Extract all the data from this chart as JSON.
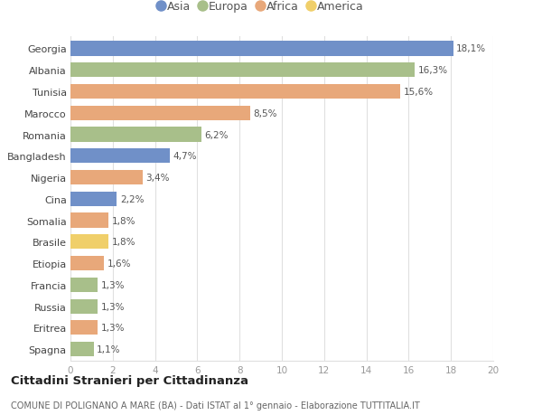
{
  "categories": [
    "Georgia",
    "Albania",
    "Tunisia",
    "Marocco",
    "Romania",
    "Bangladesh",
    "Nigeria",
    "Cina",
    "Somalia",
    "Brasile",
    "Etiopia",
    "Francia",
    "Russia",
    "Eritrea",
    "Spagna"
  ],
  "values": [
    18.1,
    16.3,
    15.6,
    8.5,
    6.2,
    4.7,
    3.4,
    2.2,
    1.8,
    1.8,
    1.6,
    1.3,
    1.3,
    1.3,
    1.1
  ],
  "labels": [
    "18,1%",
    "16,3%",
    "15,6%",
    "8,5%",
    "6,2%",
    "4,7%",
    "3,4%",
    "2,2%",
    "1,8%",
    "1,8%",
    "1,6%",
    "1,3%",
    "1,3%",
    "1,3%",
    "1,1%"
  ],
  "continents": [
    "Asia",
    "Europa",
    "Africa",
    "Africa",
    "Europa",
    "Asia",
    "Africa",
    "Asia",
    "Africa",
    "America",
    "Africa",
    "Europa",
    "Europa",
    "Africa",
    "Europa"
  ],
  "colors": {
    "Asia": "#7090c8",
    "Europa": "#a8bf8a",
    "Africa": "#e8a87a",
    "America": "#f0cf6a"
  },
  "title": "Cittadini Stranieri per Cittadinanza",
  "subtitle": "COMUNE DI POLIGNANO A MARE (BA) - Dati ISTAT al 1° gennaio - Elaborazione TUTTITALIA.IT",
  "xlim": [
    0,
    20
  ],
  "xticks": [
    0,
    2,
    4,
    6,
    8,
    10,
    12,
    14,
    16,
    18,
    20
  ],
  "background_color": "#ffffff",
  "grid_color": "#e0e0e0",
  "bar_height": 0.68,
  "legend_order": [
    "Asia",
    "Europa",
    "Africa",
    "America"
  ]
}
